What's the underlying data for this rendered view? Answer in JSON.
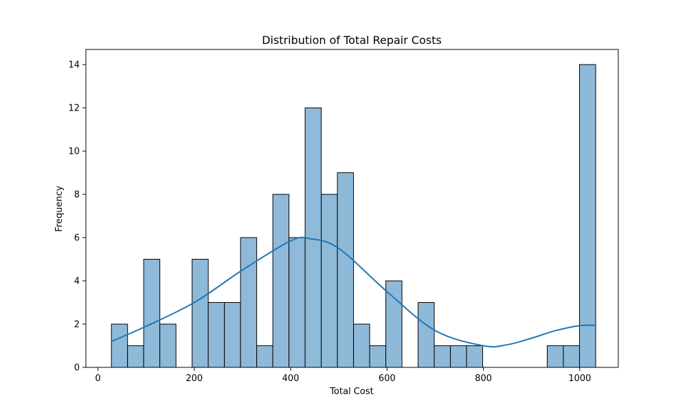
{
  "chart_data": {
    "type": "bar",
    "title": "Distribution of Total Repair Costs",
    "xlabel": "Total Cost",
    "ylabel": "Frequency",
    "xlim": [
      -25,
      1080
    ],
    "ylim": [
      0,
      14.7
    ],
    "xticks": [
      0,
      200,
      400,
      600,
      800,
      1000
    ],
    "yticks": [
      0,
      2,
      4,
      6,
      8,
      10,
      12,
      14
    ],
    "bin_width": 33.5,
    "bin_start": 28,
    "bins": [
      {
        "x0": 28.0,
        "x1": 61.5,
        "count": 2
      },
      {
        "x0": 61.5,
        "x1": 95.0,
        "count": 1
      },
      {
        "x0": 95.0,
        "x1": 128.5,
        "count": 5
      },
      {
        "x0": 128.5,
        "x1": 162.0,
        "count": 2
      },
      {
        "x0": 162.0,
        "x1": 195.5,
        "count": 0
      },
      {
        "x0": 195.5,
        "x1": 229.0,
        "count": 5
      },
      {
        "x0": 229.0,
        "x1": 262.5,
        "count": 3
      },
      {
        "x0": 262.5,
        "x1": 296.0,
        "count": 3
      },
      {
        "x0": 296.0,
        "x1": 329.5,
        "count": 6
      },
      {
        "x0": 329.5,
        "x1": 363.0,
        "count": 1
      },
      {
        "x0": 363.0,
        "x1": 396.5,
        "count": 8
      },
      {
        "x0": 396.5,
        "x1": 430.0,
        "count": 6
      },
      {
        "x0": 430.0,
        "x1": 463.5,
        "count": 12
      },
      {
        "x0": 463.5,
        "x1": 497.0,
        "count": 8
      },
      {
        "x0": 497.0,
        "x1": 530.5,
        "count": 9
      },
      {
        "x0": 530.5,
        "x1": 564.0,
        "count": 2
      },
      {
        "x0": 564.0,
        "x1": 597.5,
        "count": 1
      },
      {
        "x0": 597.5,
        "x1": 631.0,
        "count": 4
      },
      {
        "x0": 631.0,
        "x1": 664.5,
        "count": 0
      },
      {
        "x0": 664.5,
        "x1": 698.0,
        "count": 3
      },
      {
        "x0": 698.0,
        "x1": 731.5,
        "count": 1
      },
      {
        "x0": 731.5,
        "x1": 765.0,
        "count": 1
      },
      {
        "x0": 765.0,
        "x1": 798.5,
        "count": 1
      },
      {
        "x0": 798.5,
        "x1": 832.0,
        "count": 0
      },
      {
        "x0": 832.0,
        "x1": 865.5,
        "count": 0
      },
      {
        "x0": 865.5,
        "x1": 899.0,
        "count": 0
      },
      {
        "x0": 899.0,
        "x1": 932.5,
        "count": 0
      },
      {
        "x0": 932.5,
        "x1": 966.0,
        "count": 1
      },
      {
        "x0": 966.0,
        "x1": 999.5,
        "count": 1
      },
      {
        "x0": 999.5,
        "x1": 1033.0,
        "count": 14
      }
    ],
    "kde": {
      "x": [
        28,
        100,
        200,
        300,
        400,
        440,
        500,
        600,
        700,
        800,
        850,
        900,
        950,
        1000,
        1033
      ],
      "y": [
        1.2,
        1.9,
        3.0,
        4.5,
        5.85,
        5.95,
        5.5,
        3.5,
        1.7,
        1.0,
        1.05,
        1.35,
        1.7,
        1.93,
        1.94
      ]
    },
    "colors": {
      "bar_fill": "#8fb9d9",
      "bar_edge": "#000000",
      "kde_line": "#1f77b4"
    },
    "grid": false,
    "legend": "none"
  }
}
